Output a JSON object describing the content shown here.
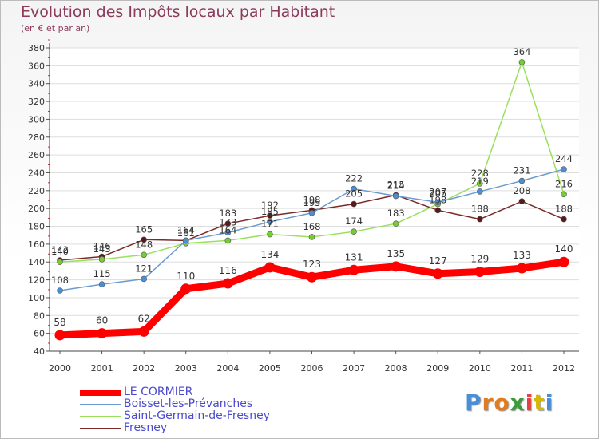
{
  "chart_data": {
    "type": "line",
    "title": "Evolution des Impôts locaux par Habitant",
    "subtitle": "(en € et par an)",
    "xlabel": "",
    "ylabel": "",
    "ylim": [
      40,
      380
    ],
    "yticks": [
      40,
      60,
      80,
      100,
      120,
      140,
      160,
      180,
      200,
      220,
      240,
      260,
      280,
      300,
      320,
      340,
      360,
      380
    ],
    "x": [
      "2000",
      "2001",
      "2002",
      "2003",
      "2004",
      "2005",
      "2006",
      "2007",
      "2008",
      "2009",
      "2010",
      "2011",
      "2012"
    ],
    "series": [
      {
        "name": "LE CORMIER",
        "color": "#ff0000",
        "values": [
          58,
          60,
          62,
          110,
          116,
          134,
          123,
          131,
          135,
          127,
          129,
          133,
          140
        ]
      },
      {
        "name": "Boisset-les-Prévanches",
        "color": "#6b9bd1",
        "values": [
          108,
          115,
          121,
          164,
          173,
          185,
          195,
          222,
          214,
          207,
          219,
          231,
          244
        ]
      },
      {
        "name": "Saint-Germain-de-Fresney",
        "color": "#99e05c",
        "values": [
          140,
          143,
          148,
          161,
          164,
          171,
          168,
          174,
          183,
          205,
          228,
          364,
          216
        ]
      },
      {
        "name": "Fresney",
        "color": "#7a2a2a",
        "values": [
          142,
          146,
          165,
          164,
          183,
          192,
          198,
          205,
          215,
          198,
          188,
          208,
          188
        ]
      }
    ],
    "data_labels": [
      [
        58,
        60,
        62,
        110,
        116,
        134,
        123,
        131,
        135,
        127,
        129,
        133,
        140
      ],
      [
        108,
        115,
        121,
        164,
        173,
        185,
        195,
        222,
        214,
        207,
        219,
        231,
        244
      ],
      [
        140,
        143,
        148,
        161,
        164,
        171,
        168,
        174,
        183,
        205,
        228,
        364,
        216
      ],
      [
        142,
        146,
        165,
        164,
        183,
        192,
        198,
        205,
        215,
        198,
        188,
        208,
        188
      ]
    ],
    "legend_position": "bottom-left",
    "grid": true
  },
  "logo": {
    "text": "Proxiti",
    "colors": [
      "#4a8fd6",
      "#e07b20",
      "#e07b20",
      "#3a9d3a",
      "#e84040",
      "#d6b800",
      "#4a8fd6"
    ]
  }
}
